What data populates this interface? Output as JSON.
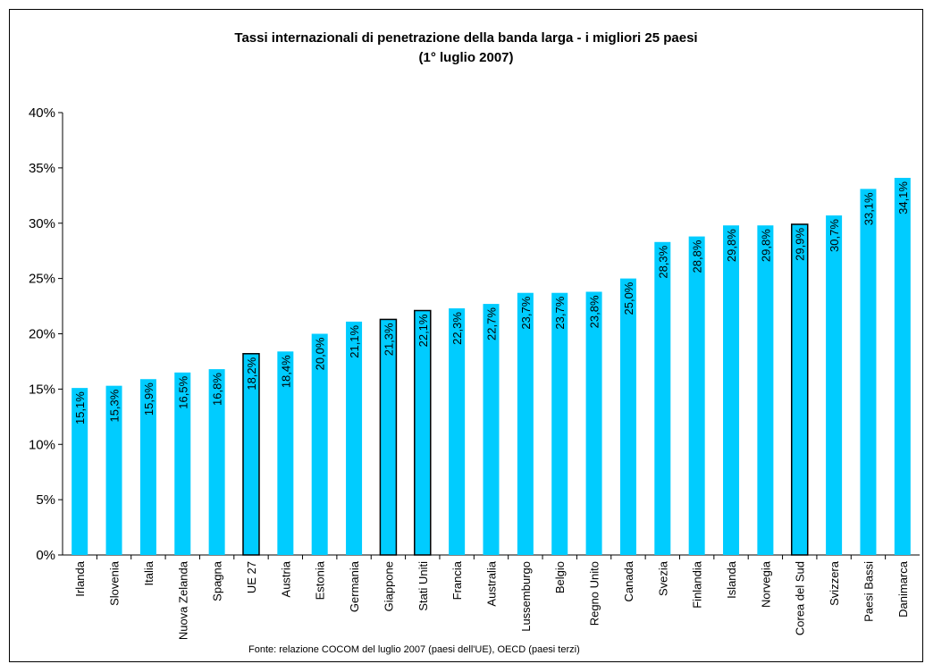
{
  "chart_data": {
    "type": "bar",
    "title": "Tassi internazionali di penetrazione della banda larga - i migliori 25 paesi",
    "subtitle": "(1° luglio 2007)",
    "source": "Fonte: relazione COCOM del luglio 2007 (paesi dell'UE), OECD (paesi terzi)",
    "categories": [
      "Irlanda",
      "Slovenia",
      "Italia",
      "Nuova Zelanda",
      "Spagna",
      "UE 27",
      "Austria",
      "Estonia",
      "Germania",
      "Giappone",
      "Stati Uniti",
      "Francia",
      "Australia",
      "Lussemburgo",
      "Belgio",
      "Regno Unito",
      "Canada",
      "Svezia",
      "Finlandia",
      "Islanda",
      "Norvegia",
      "Corea del Sud",
      "Svizzera",
      "Paesi Bassi",
      "Danimarca"
    ],
    "values": [
      15.1,
      15.3,
      15.9,
      16.5,
      16.8,
      18.2,
      18.4,
      20.0,
      21.1,
      21.3,
      22.1,
      22.3,
      22.7,
      23.7,
      23.7,
      23.8,
      25.0,
      28.3,
      28.8,
      29.8,
      29.8,
      29.9,
      30.7,
      33.1,
      34.1
    ],
    "data_labels": [
      "15,1%",
      "15,3%",
      "15,9%",
      "16,5%",
      "16,8%",
      "18,2%",
      "18,4%",
      "20,0%",
      "21,1%",
      "21,3%",
      "22,1%",
      "22,3%",
      "22,7%",
      "23,7%",
      "23,7%",
      "23,8%",
      "25,0%",
      "28,3%",
      "28,8%",
      "29,8%",
      "29,8%",
      "29,9%",
      "30,7%",
      "33,1%",
      "34,1%"
    ],
    "highlighted": [
      "UE 27",
      "Giappone",
      "Stati Uniti",
      "Corea del Sud"
    ],
    "ylim": [
      0,
      40
    ],
    "y_ticks": [
      "0%",
      "5%",
      "10%",
      "15%",
      "20%",
      "25%",
      "30%",
      "35%",
      "40%"
    ],
    "bar_color": "#00CCFF",
    "highlight_border_color": "#000000",
    "grid": false,
    "legend": "none"
  }
}
